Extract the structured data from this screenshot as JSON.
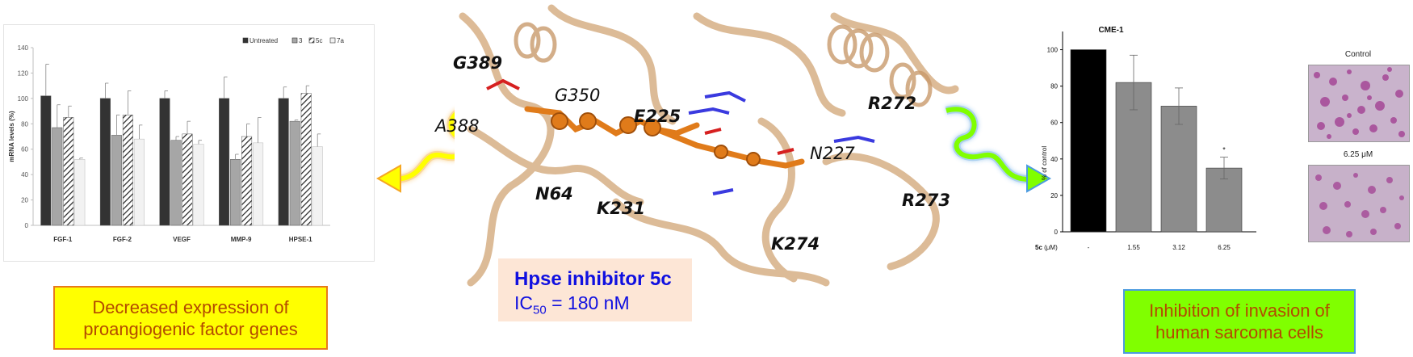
{
  "left_chart": {
    "legend": [
      "Untreated",
      "3",
      "5c",
      "7a"
    ],
    "ylabel": "mRNA levels (%)",
    "yticks": [
      "0",
      "20",
      "40",
      "60",
      "80",
      "100",
      "120",
      "140"
    ]
  },
  "left_caption": {
    "line1": "Decreased expression of",
    "line2": "proangiogenic factor genes"
  },
  "right_caption": {
    "line1": "Inhibition of invasion of",
    "line2": "human sarcoma cells"
  },
  "inhibitor": {
    "title": "Hpse inhibitor 5c",
    "ic_prefix": "IC",
    "ic_sub": "50",
    "ic_value": " = 180 nM"
  },
  "residues": {
    "g389": "G389",
    "g350": "G350",
    "a388": "A388",
    "e225": "E225",
    "r272": "R272",
    "n227": "N227",
    "n64": "N64",
    "k231": "K231",
    "r273": "R273",
    "k274": "K274"
  },
  "right_chart": {
    "title": "CME-1",
    "ylabel": "% of control",
    "xlabel_prefix": "5c",
    "xlabel_unit": " (μM)",
    "yticks": [
      "0",
      "20",
      "40",
      "60",
      "80",
      "100"
    ],
    "significance": "*"
  },
  "micro": {
    "control_label": "Control",
    "dose_label": "6.25 μM"
  },
  "chart_data": [
    {
      "type": "bar",
      "categories": [
        "FGF-1",
        "FGF-2",
        "VEGF",
        "MMP-9",
        "HPSE-1"
      ],
      "series": [
        {
          "name": "Untreated",
          "values": [
            102,
            100,
            100,
            100,
            100
          ],
          "errors": [
            25,
            12,
            6,
            17,
            9
          ]
        },
        {
          "name": "3",
          "values": [
            77,
            71,
            67,
            52,
            82
          ],
          "errors": [
            18,
            16,
            3,
            4,
            1
          ]
        },
        {
          "name": "5c",
          "values": [
            85,
            87,
            72,
            70,
            104
          ],
          "errors": [
            9,
            19,
            10,
            10,
            6
          ]
        },
        {
          "name": "7a",
          "values": [
            52,
            68,
            64,
            65,
            62
          ],
          "errors": [
            1,
            11,
            3,
            20,
            10
          ]
        }
      ],
      "title": "",
      "xlabel": "",
      "ylabel": "mRNA levels (%)",
      "ylim": [
        0,
        140
      ],
      "legend_position": "top-right",
      "colors": [
        "#333333",
        "#a6a6a6",
        "hatched",
        "#f2f2f2"
      ]
    },
    {
      "type": "bar",
      "categories": [
        "-",
        "1.55",
        "3.12",
        "6.25"
      ],
      "values": [
        100,
        82,
        69,
        35
      ],
      "errors": [
        0,
        15,
        10,
        6
      ],
      "title": "CME-1",
      "xlabel": "5c (μM)",
      "ylabel": "% of control",
      "ylim": [
        0,
        110
      ],
      "colors": [
        "#000000",
        "#8c8c8c",
        "#8c8c8c",
        "#8c8c8c"
      ],
      "annotations": [
        {
          "category": "6.25",
          "text": "*"
        }
      ]
    }
  ]
}
